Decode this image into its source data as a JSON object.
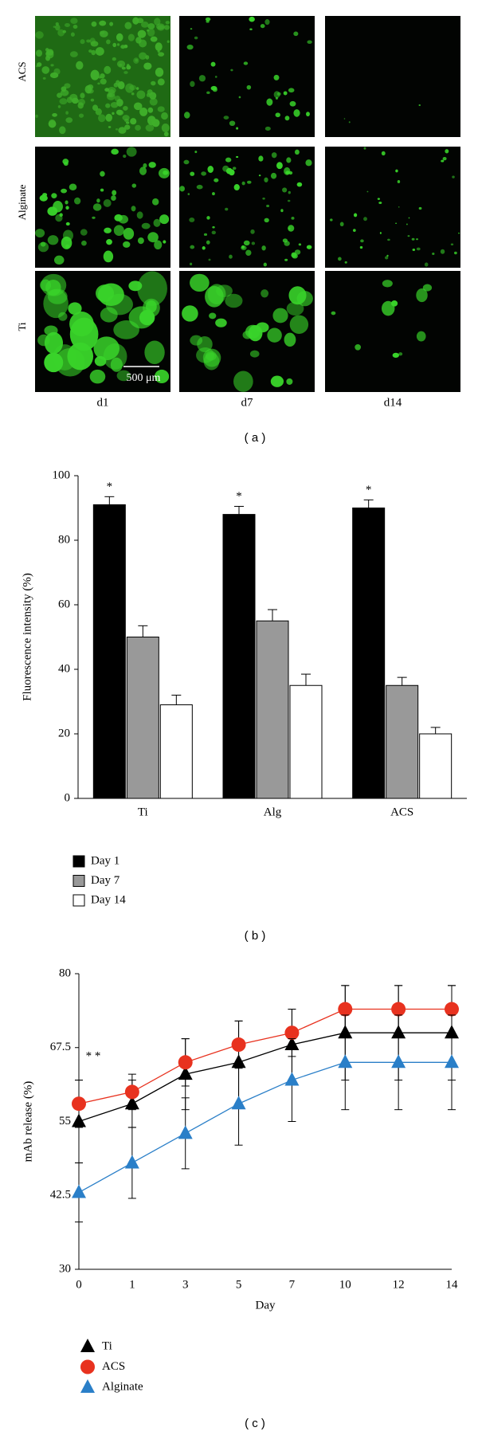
{
  "panel_a": {
    "row_labels": [
      "ACS",
      "Alginate",
      "Ti"
    ],
    "col_labels": [
      "d1",
      "d7",
      "d14"
    ],
    "scale_bar": "500 μm",
    "label": "( a )"
  },
  "chart_data": [
    {
      "type": "bar",
      "label": "( b )",
      "y_label": "Fluorescence intensity (%)",
      "categories": [
        "Ti",
        "Alg",
        "ACS"
      ],
      "series": [
        {
          "name": "Day 1",
          "color": "#000000",
          "values": [
            91,
            88,
            90
          ],
          "errors": [
            2.5,
            2.5,
            2.5
          ]
        },
        {
          "name": "Day 7",
          "color": "#999999",
          "values": [
            50,
            55,
            35
          ],
          "errors": [
            3.5,
            3.5,
            2.5
          ]
        },
        {
          "name": "Day 14",
          "color": "#ffffff",
          "values": [
            29,
            35,
            20
          ],
          "errors": [
            3,
            3.5,
            2
          ]
        }
      ],
      "annotations": [
        {
          "text": "*",
          "series": 0,
          "category": 0
        },
        {
          "text": "*",
          "series": 0,
          "category": 1
        },
        {
          "text": "*",
          "series": 0,
          "category": 2
        }
      ],
      "ylim": [
        0,
        100
      ],
      "yticks": [
        0,
        20,
        40,
        60,
        80,
        100
      ]
    },
    {
      "type": "line",
      "label": "( c )",
      "y_label": "mAb release (%)",
      "x_label": "Day",
      "categories": [
        "0",
        "1",
        "3",
        "5",
        "7",
        "10",
        "12",
        "14"
      ],
      "series": [
        {
          "name": "Ti",
          "color": "#000000",
          "marker": "triangle",
          "values": [
            55,
            58,
            63,
            65,
            68,
            70,
            70,
            70
          ],
          "errors": [
            7,
            4,
            6,
            7,
            6,
            8,
            8,
            8
          ]
        },
        {
          "name": "ACS",
          "color": "#e8321f",
          "marker": "circle",
          "values": [
            58,
            60,
            65,
            68,
            70,
            74,
            74,
            74
          ],
          "errors": [
            4,
            3,
            4,
            4,
            4,
            4,
            4,
            4
          ]
        },
        {
          "name": "Alginate",
          "color": "#2a7fc8",
          "marker": "triangle",
          "values": [
            43,
            48,
            53,
            58,
            62,
            65,
            65,
            65
          ],
          "errors": [
            5,
            6,
            6,
            7,
            7,
            8,
            8,
            8
          ]
        }
      ],
      "annotations": [
        {
          "text": "* *",
          "category": 0,
          "y": 66
        }
      ],
      "ylim": [
        30,
        80
      ],
      "yticks": [
        30,
        42.5,
        55,
        67.5,
        80
      ]
    }
  ]
}
